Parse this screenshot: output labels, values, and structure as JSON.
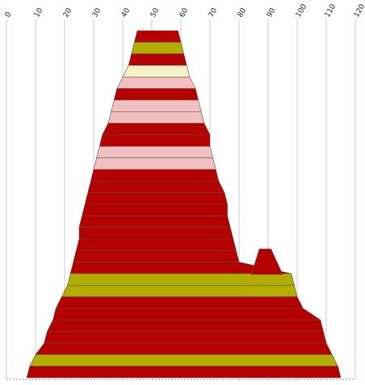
{
  "chart_data": {
    "type": "area",
    "title": "",
    "xlabel": "",
    "ylabel": "",
    "xlim": [
      0,
      120
    ],
    "x_ticks": [
      "0",
      "10",
      "20",
      "30",
      "40",
      "50",
      "60",
      "70",
      "80",
      "90",
      "100",
      "110",
      "120"
    ],
    "grid": "vertical",
    "legend": "none",
    "colors": {
      "red": "#b50000",
      "olive": "#b3ad00",
      "cream": "#f4f2c2",
      "pink": "#f2c0c0",
      "grid": "#c8c8c8"
    },
    "rows": [
      {
        "start": 45,
        "end": 59,
        "color": "red"
      },
      {
        "start": 44,
        "end": 60,
        "color": "olive"
      },
      {
        "start": 43,
        "end": 61,
        "color": "red"
      },
      {
        "start": 42,
        "end": 62,
        "color": "cream"
      },
      {
        "start": 40,
        "end": 63,
        "color": "pink"
      },
      {
        "start": 38,
        "end": 65,
        "color": "red"
      },
      {
        "start": 37,
        "end": 66,
        "color": "pink"
      },
      {
        "start": 36,
        "end": 67,
        "color": "pink"
      },
      {
        "start": 35,
        "end": 68,
        "color": "red"
      },
      {
        "start": 33,
        "end": 70,
        "color": "red"
      },
      {
        "start": 32,
        "end": 70,
        "color": "pink"
      },
      {
        "start": 31,
        "end": 71,
        "color": "pink"
      },
      {
        "start": 30,
        "end": 72,
        "color": "red"
      },
      {
        "start": 29,
        "end": 73,
        "color": "red"
      },
      {
        "start": 28,
        "end": 75,
        "color": "red"
      },
      {
        "start": 27,
        "end": 76,
        "color": "red"
      },
      {
        "start": 26,
        "end": 76,
        "color": "red"
      },
      {
        "start": 25,
        "end": 77,
        "color": "red"
      },
      {
        "start": 25,
        "end": 78,
        "color": "red"
      },
      {
        "start": 24,
        "end": 79,
        "color": "red"
      },
      {
        "start": 23,
        "end": 80,
        "color": "red"
      },
      {
        "start": 22,
        "end": 98,
        "color": "olive"
      },
      {
        "start": 21,
        "end": 99,
        "color": "olive"
      },
      {
        "start": 19,
        "end": 100,
        "color": "red"
      },
      {
        "start": 17,
        "end": 102,
        "color": "red"
      },
      {
        "start": 16,
        "end": 108,
        "color": "red"
      },
      {
        "start": 14,
        "end": 109,
        "color": "red"
      },
      {
        "start": 13,
        "end": 110,
        "color": "red"
      },
      {
        "start": 10,
        "end": 112,
        "color": "olive"
      },
      {
        "start": 8,
        "end": 114,
        "color": "red"
      }
    ],
    "secondary_peak": {
      "start": 87,
      "top": 91,
      "end": 95,
      "color": "red"
    }
  }
}
